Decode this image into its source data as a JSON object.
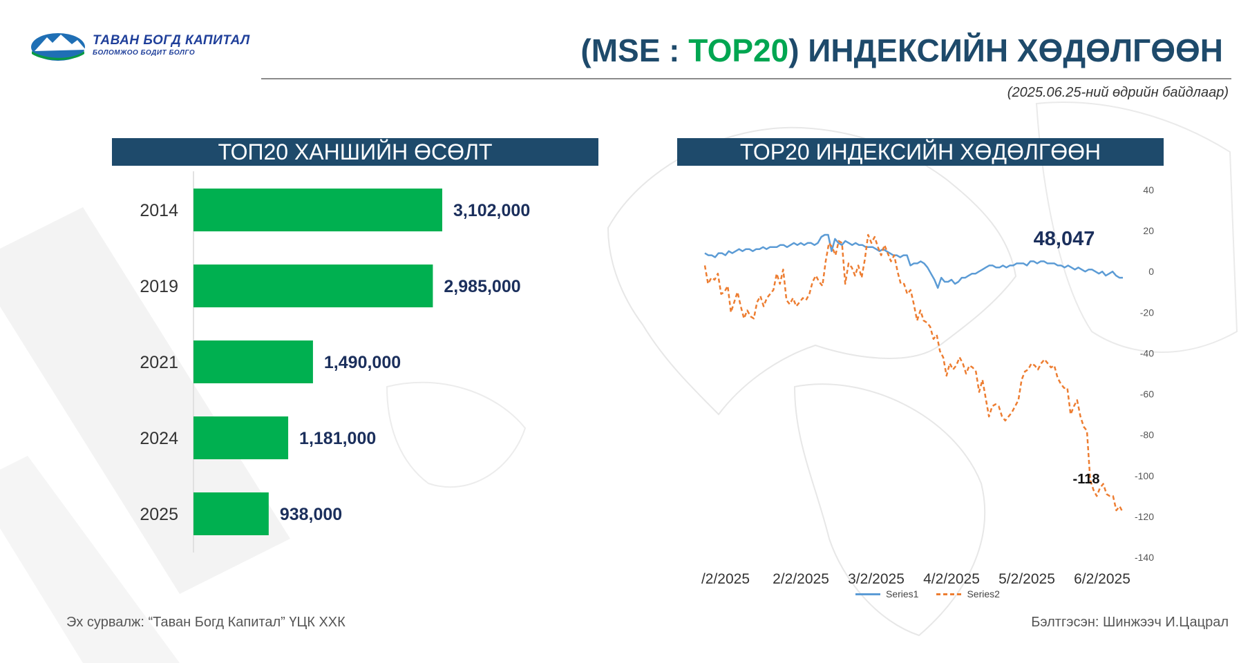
{
  "header": {
    "logo_name": "ТАВАН БОГД КАПИТАЛ",
    "logo_slogan": "БОЛОМЖОО БОДИТ БОЛГО",
    "title_open": "(MSE : ",
    "title_accent": "TOP20",
    "title_close": ") ИНДЕКСИЙН ХӨДӨЛГӨӨН",
    "date_note": "(2025.06.25-ний өдрийн байдлаар)"
  },
  "colors": {
    "header_bar": "#1e4a6b",
    "bar": "#00b050",
    "accent_green": "#00a651",
    "series1": "#5b9bd5",
    "series2": "#ed7d31"
  },
  "footer": {
    "source": "Эх сурвалж: “Таван Богд Капитал” ҮЦК ХХК",
    "prepared": "Бэлтгэсэн: Шинжээч И.Цацрал"
  },
  "chart_data": [
    {
      "type": "bar",
      "orientation": "horizontal",
      "title": "ТОП20 ХАНШИЙН ӨСӨЛТ",
      "categories": [
        "2014",
        "2019",
        "2021",
        "2024",
        "2025"
      ],
      "values": [
        3102000,
        2985000,
        1490000,
        1181000,
        938000
      ],
      "value_labels": [
        "3,102,000",
        "2,985,000",
        "1,490,000",
        "1,181,000",
        "938,000"
      ],
      "grid": false
    },
    {
      "type": "line",
      "title": "TOP20 ИНДЕКСИЙН ХӨДӨЛГӨӨН",
      "ylim": [
        -140,
        40
      ],
      "y_ticks": [
        40,
        20,
        0,
        -20,
        -40,
        -60,
        -80,
        -100,
        -120,
        -140
      ],
      "y_axis_side": "right",
      "x_tick_labels": [
        "/2/2025",
        "2/2/2025",
        "3/2/2025",
        "4/2/2025",
        "5/2/2025",
        "6/2/2025"
      ],
      "legend_position": "bottom",
      "grid": false,
      "series": [
        {
          "name": "Series1",
          "style": "solid",
          "end_label": "48,047",
          "values": [
            9,
            8,
            8,
            7,
            9,
            9,
            8,
            10,
            9,
            10,
            11,
            10,
            11,
            11,
            10,
            11,
            11,
            12,
            11,
            12,
            12,
            12,
            13,
            13,
            12,
            13,
            14,
            13,
            14,
            13,
            14,
            14,
            13,
            14,
            17,
            18,
            18,
            10,
            16,
            14,
            13,
            15,
            14,
            13,
            14,
            13,
            13,
            12,
            12,
            12,
            11,
            10,
            11,
            10,
            9,
            8,
            8,
            7,
            8,
            8,
            3,
            4,
            4,
            5,
            4,
            2,
            -1,
            -4,
            -8,
            -3,
            -5,
            -5,
            -4,
            -6,
            -5,
            -3,
            -3,
            -2,
            -1,
            -1,
            0,
            1,
            2,
            3,
            3,
            2,
            2,
            3,
            2,
            3,
            3,
            4,
            4,
            4,
            3,
            5,
            5,
            4,
            5,
            5,
            4,
            4,
            4,
            3,
            3,
            2,
            3,
            2,
            1,
            2,
            1,
            0,
            1,
            1,
            0,
            -1,
            0,
            -2,
            -1,
            0,
            -2,
            -3,
            -3
          ]
        },
        {
          "name": "Series2",
          "style": "dashed",
          "end_label": "-118",
          "values": [
            3,
            -6,
            -3,
            -4,
            -1,
            -11,
            -10,
            -7,
            -20,
            -15,
            -10,
            -17,
            -23,
            -19,
            -22,
            -23,
            -15,
            -12,
            -17,
            -13,
            -11,
            -9,
            -1,
            -6,
            1,
            -14,
            -16,
            -13,
            -17,
            -15,
            -13,
            -14,
            -11,
            -5,
            -2,
            -5,
            -7,
            5,
            14,
            12,
            8,
            15,
            14,
            -6,
            4,
            2,
            -2,
            3,
            -3,
            6,
            18,
            14,
            17,
            12,
            8,
            13,
            9,
            5,
            8,
            0,
            -6,
            -6,
            -11,
            -9,
            -16,
            -24,
            -19,
            -24,
            -25,
            -27,
            -33,
            -31,
            -39,
            -42,
            -51,
            -45,
            -48,
            -46,
            -42,
            -45,
            -50,
            -46,
            -47,
            -49,
            -59,
            -53,
            -62,
            -71,
            -66,
            -65,
            -66,
            -71,
            -73,
            -71,
            -69,
            -66,
            -63,
            -53,
            -49,
            -48,
            -45,
            -46,
            -48,
            -45,
            -43,
            -45,
            -47,
            -46,
            -52,
            -55,
            -57,
            -57,
            -70,
            -66,
            -63,
            -71,
            -76,
            -78,
            -102,
            -107,
            -110,
            -106,
            -104,
            -109,
            -110,
            -110,
            -117,
            -115,
            -118
          ]
        }
      ]
    }
  ]
}
